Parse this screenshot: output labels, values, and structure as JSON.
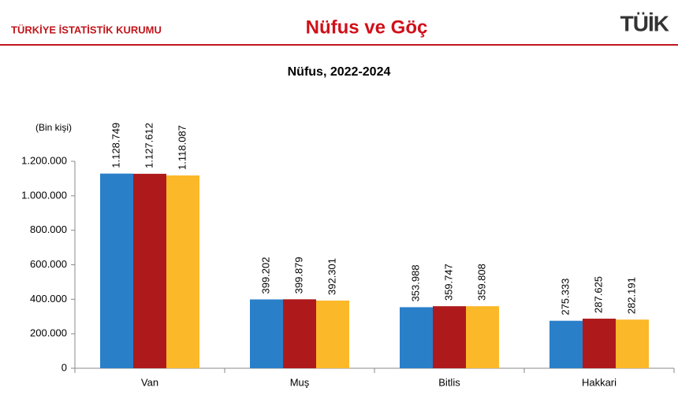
{
  "header": {
    "org": "TÜRKİYE İSTATİSTİK KURUMU",
    "section": "Nüfus ve Göç",
    "logo": "TÜİK"
  },
  "chart_data": {
    "type": "bar",
    "title": "Nüfus, 2022-2024",
    "y_label": "(Bin kişi)",
    "categories": [
      "Van",
      "Muş",
      "Bitlis",
      "Hakkari"
    ],
    "series": [
      {
        "color": "#2a7fc9",
        "values": [
          1128749,
          399202,
          353988,
          275333
        ],
        "value_labels": [
          "1.128.749",
          "399.202",
          "353.988",
          "275.333"
        ]
      },
      {
        "color": "#ae1a1c",
        "values": [
          1127612,
          399879,
          359747,
          287625
        ],
        "value_labels": [
          "1.127.612",
          "399.879",
          "359.747",
          "287.625"
        ]
      },
      {
        "color": "#fbb829",
        "values": [
          1118087,
          392301,
          359808,
          282191
        ],
        "value_labels": [
          "1.118.087",
          "392.301",
          "359.808",
          "282.191"
        ]
      }
    ],
    "ylim": [
      0,
      1200000
    ],
    "yticks": [
      0,
      {
        "value": 200000,
        "label": "200.000"
      },
      {
        "value": 400000,
        "label": "400.000"
      },
      {
        "value": 600000,
        "label": "600.000"
      },
      {
        "value": 800000,
        "label": "800.000"
      },
      {
        "value": 1000000,
        "label": "1.000.000"
      },
      {
        "value": 1200000,
        "label": "1.200.000"
      }
    ],
    "grid": false
  }
}
